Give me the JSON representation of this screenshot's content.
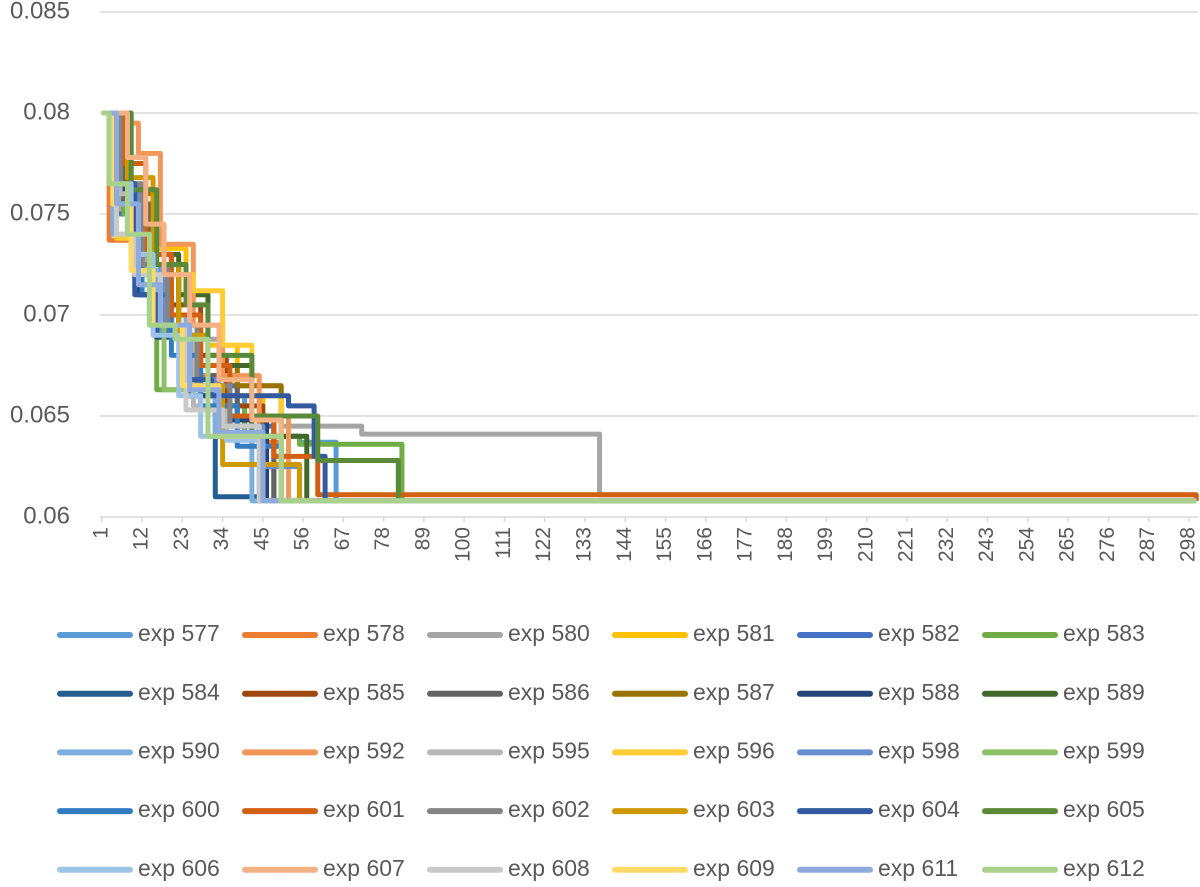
{
  "chart_data": {
    "type": "line",
    "step": true,
    "line_width": 5,
    "grid": true,
    "xlim": [
      0.5,
      300.5
    ],
    "xticks": [
      1,
      12,
      23,
      34,
      45,
      56,
      67,
      78,
      89,
      100,
      111,
      122,
      133,
      144,
      155,
      166,
      177,
      188,
      199,
      210,
      221,
      232,
      243,
      254,
      265,
      276,
      287,
      298
    ],
    "ylim": [
      0.06,
      0.085
    ],
    "yticks": [
      0.06,
      0.065,
      0.07,
      0.075,
      0.08,
      0.085
    ],
    "legend": "bottom",
    "series": [
      {
        "name": "exp 577",
        "color": "#5b9bd5",
        "x": [
          1,
          4,
          10,
          17,
          25,
          40,
          55,
          65,
          300
        ],
        "values": [
          0.08,
          0.0765,
          0.0725,
          0.069,
          0.066,
          0.064,
          0.0637,
          0.0608,
          0.0608
        ]
      },
      {
        "name": "exp 578",
        "color": "#ed7d31",
        "x": [
          1,
          3,
          10,
          16,
          24,
          32,
          44,
          50,
          300
        ],
        "values": [
          0.08,
          0.0737,
          0.072,
          0.07,
          0.067,
          0.065,
          0.0637,
          0.0608,
          0.0608
        ]
      },
      {
        "name": "exp 580",
        "color": "#a5a5a5",
        "x": [
          1,
          6,
          13,
          22,
          33,
          50,
          72,
          137,
          300
        ],
        "values": [
          0.08,
          0.075,
          0.072,
          0.0688,
          0.0665,
          0.0645,
          0.0641,
          0.0611,
          0.0608
        ]
      },
      {
        "name": "exp 581",
        "color": "#ffc000",
        "x": [
          1,
          8,
          16,
          24,
          30,
          38,
          45,
          52,
          300
        ],
        "values": [
          0.08,
          0.0745,
          0.0733,
          0.071,
          0.0685,
          0.066,
          0.064,
          0.0608,
          0.0608
        ]
      },
      {
        "name": "exp 582",
        "color": "#4472c4",
        "x": [
          1,
          5,
          11,
          19,
          28,
          38,
          48,
          300
        ],
        "values": [
          0.08,
          0.075,
          0.0715,
          0.069,
          0.0665,
          0.0645,
          0.0608,
          0.0608
        ]
      },
      {
        "name": "exp 583",
        "color": "#70ad47",
        "x": [
          1,
          7,
          14,
          16,
          28,
          40,
          55,
          83,
          300
        ],
        "values": [
          0.08,
          0.075,
          0.07,
          0.0663,
          0.0655,
          0.064,
          0.0636,
          0.0608,
          0.0608
        ]
      },
      {
        "name": "exp 584",
        "color": "#255e91",
        "x": [
          1,
          5,
          11,
          18,
          25,
          32,
          45,
          300
        ],
        "values": [
          0.08,
          0.0755,
          0.071,
          0.069,
          0.066,
          0.061,
          0.0608,
          0.0608
        ]
      },
      {
        "name": "exp 585",
        "color": "#9e480e",
        "x": [
          1,
          6,
          12,
          20,
          28,
          35,
          45,
          300
        ],
        "values": [
          0.08,
          0.076,
          0.073,
          0.0705,
          0.068,
          0.0655,
          0.0608,
          0.0608
        ]
      },
      {
        "name": "exp 586",
        "color": "#636363",
        "x": [
          1,
          7,
          14,
          22,
          30,
          38,
          48,
          300
        ],
        "values": [
          0.08,
          0.0755,
          0.072,
          0.069,
          0.067,
          0.065,
          0.0608,
          0.0608
        ]
      },
      {
        "name": "exp 587",
        "color": "#997300",
        "x": [
          1,
          8,
          15,
          22,
          30,
          38,
          50,
          300
        ],
        "values": [
          0.08,
          0.076,
          0.0725,
          0.0695,
          0.0675,
          0.0665,
          0.0608,
          0.0608
        ]
      },
      {
        "name": "exp 588",
        "color": "#264478",
        "x": [
          1,
          4,
          11,
          16,
          24,
          34,
          46,
          300
        ],
        "values": [
          0.08,
          0.0762,
          0.071,
          0.0689,
          0.066,
          0.0648,
          0.0608,
          0.0608
        ]
      },
      {
        "name": "exp 589",
        "color": "#43682b",
        "x": [
          1,
          9,
          15,
          22,
          30,
          42,
          57,
          300
        ],
        "values": [
          0.08,
          0.0762,
          0.073,
          0.071,
          0.0675,
          0.064,
          0.0608,
          0.0608
        ]
      },
      {
        "name": "exp 590",
        "color": "#7cafdd",
        "x": [
          1,
          4,
          10,
          16,
          24,
          32,
          42,
          300
        ],
        "values": [
          0.08,
          0.074,
          0.0722,
          0.07,
          0.0665,
          0.064,
          0.0608,
          0.0608
        ]
      },
      {
        "name": "exp 592",
        "color": "#f1975a",
        "x": [
          1,
          7,
          11,
          17,
          26,
          34,
          44,
          52,
          300
        ],
        "values": [
          0.08,
          0.0795,
          0.078,
          0.0735,
          0.0695,
          0.067,
          0.065,
          0.0608,
          0.0608
        ]
      },
      {
        "name": "exp 595",
        "color": "#b7b7b7",
        "x": [
          1,
          6,
          12,
          20,
          26,
          35,
          45,
          300
        ],
        "values": [
          0.08,
          0.076,
          0.0725,
          0.069,
          0.0655,
          0.064,
          0.0608,
          0.0608
        ]
      },
      {
        "name": "exp 596",
        "color": "#ffcd33",
        "x": [
          1,
          5,
          11,
          18,
          26,
          34,
          42,
          50,
          300
        ],
        "values": [
          0.08,
          0.0738,
          0.0725,
          0.072,
          0.0712,
          0.0685,
          0.066,
          0.0608,
          0.0608
        ]
      },
      {
        "name": "exp 598",
        "color": "#698ed0",
        "x": [
          1,
          5,
          11,
          18,
          25,
          33,
          45,
          55,
          300
        ],
        "values": [
          0.08,
          0.0765,
          0.072,
          0.0695,
          0.0668,
          0.0645,
          0.0625,
          0.0608,
          0.0608
        ]
      },
      {
        "name": "exp 599",
        "color": "#8cc168",
        "x": [
          1,
          3,
          8,
          14,
          18,
          30,
          45,
          300
        ],
        "values": [
          0.08,
          0.0765,
          0.074,
          0.0695,
          0.0663,
          0.064,
          0.0608,
          0.0608
        ]
      },
      {
        "name": "exp 600",
        "color": "#327dc2",
        "x": [
          1,
          5,
          12,
          20,
          28,
          38,
          50,
          300
        ],
        "values": [
          0.08,
          0.0755,
          0.071,
          0.068,
          0.0655,
          0.0635,
          0.0608,
          0.0608
        ]
      },
      {
        "name": "exp 601",
        "color": "#d26012",
        "x": [
          1,
          7,
          13,
          20,
          28,
          36,
          48,
          60,
          300
        ],
        "values": [
          0.08,
          0.0775,
          0.073,
          0.07,
          0.0675,
          0.065,
          0.063,
          0.0611,
          0.0608
        ]
      },
      {
        "name": "exp 602",
        "color": "#848484",
        "x": [
          1,
          6,
          12,
          19,
          27,
          36,
          44,
          300
        ],
        "values": [
          0.08,
          0.0765,
          0.0725,
          0.0695,
          0.0665,
          0.0645,
          0.0608,
          0.0608
        ]
      },
      {
        "name": "exp 603",
        "color": "#cc9a00",
        "x": [
          1,
          8,
          15,
          22,
          30,
          34,
          55,
          300
        ],
        "values": [
          0.08,
          0.0768,
          0.0725,
          0.069,
          0.0665,
          0.0626,
          0.0608,
          0.0608
        ]
      },
      {
        "name": "exp 604",
        "color": "#335aa1",
        "x": [
          1,
          4,
          10,
          16,
          25,
          31,
          52,
          59,
          62,
          300
        ],
        "values": [
          0.08,
          0.0765,
          0.071,
          0.069,
          0.0668,
          0.066,
          0.0655,
          0.063,
          0.0608,
          0.0608
        ]
      },
      {
        "name": "exp 605",
        "color": "#5a8a39",
        "x": [
          1,
          9,
          16,
          24,
          30,
          42,
          60,
          82,
          300
        ],
        "values": [
          0.08,
          0.0762,
          0.0725,
          0.0705,
          0.068,
          0.065,
          0.0628,
          0.0608,
          0.0608
        ]
      },
      {
        "name": "exp 606",
        "color": "#9dc3e6",
        "x": [
          1,
          4,
          9,
          15,
          22,
          28,
          35,
          45,
          300
        ],
        "values": [
          0.08,
          0.0765,
          0.073,
          0.069,
          0.066,
          0.064,
          0.0638,
          0.0608,
          0.0608
        ]
      },
      {
        "name": "exp 607",
        "color": "#f4b183",
        "x": [
          1,
          8,
          13,
          18,
          25,
          33,
          42,
          50,
          300
        ],
        "values": [
          0.08,
          0.0778,
          0.0745,
          0.072,
          0.0695,
          0.0668,
          0.0648,
          0.0608,
          0.0608
        ]
      },
      {
        "name": "exp 608",
        "color": "#c9c9c9",
        "x": [
          1,
          5,
          10,
          17,
          24,
          34,
          44,
          300
        ],
        "values": [
          0.08,
          0.074,
          0.072,
          0.0695,
          0.0653,
          0.0645,
          0.0608,
          0.0608
        ]
      },
      {
        "name": "exp 609",
        "color": "#ffd966",
        "x": [
          1,
          4,
          9,
          15,
          23,
          33,
          45,
          300
        ],
        "values": [
          0.08,
          0.0755,
          0.0722,
          0.0695,
          0.0665,
          0.064,
          0.0608,
          0.0608
        ]
      },
      {
        "name": "exp 611",
        "color": "#8faadc",
        "x": [
          1,
          5,
          11,
          17,
          25,
          33,
          45,
          300
        ],
        "values": [
          0.08,
          0.0755,
          0.0715,
          0.0695,
          0.0663,
          0.0642,
          0.0608,
          0.0608
        ]
      },
      {
        "name": "exp 612",
        "color": "#a9d18e",
        "x": [
          1,
          3,
          8,
          14,
          21,
          30,
          50,
          300
        ],
        "values": [
          0.08,
          0.0765,
          0.074,
          0.0695,
          0.0688,
          0.064,
          0.0608,
          0.0608
        ]
      }
    ]
  }
}
